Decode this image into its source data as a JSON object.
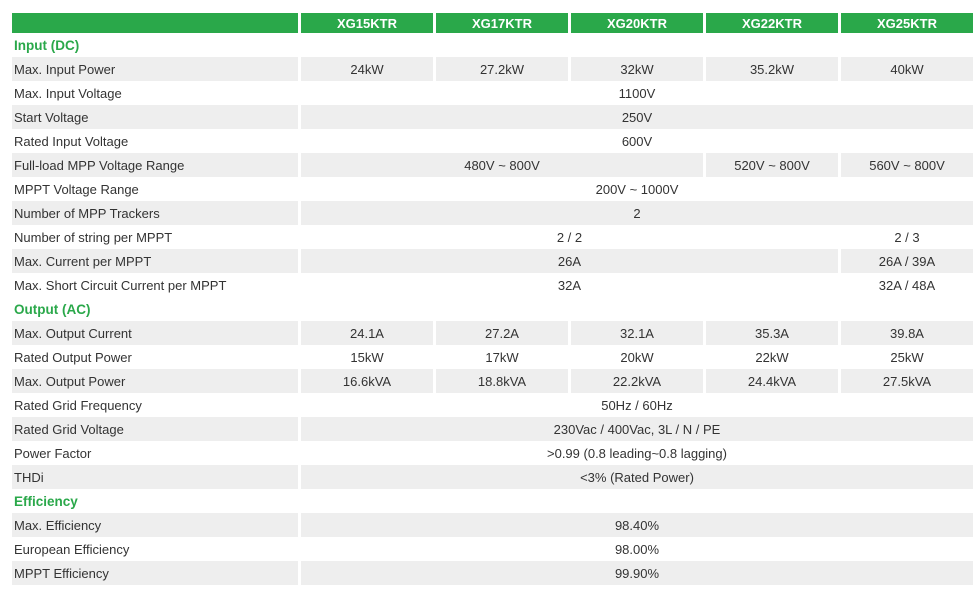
{
  "header": {
    "models": [
      "XG15KTR",
      "XG17KTR",
      "XG20KTR",
      "XG22KTR",
      "XG25KTR"
    ]
  },
  "sections": {
    "input": {
      "title": "Input (DC)",
      "max_input_power": {
        "label": "Max. Input Power",
        "values": [
          "24kW",
          "27.2kW",
          "32kW",
          "35.2kW",
          "40kW"
        ]
      },
      "max_input_voltage": {
        "label": "Max. Input Voltage",
        "value": "1100V"
      },
      "start_voltage": {
        "label": "Start Voltage",
        "value": "250V"
      },
      "rated_input_voltage": {
        "label": "Rated Input Voltage",
        "value": "600V"
      },
      "full_load_mpp": {
        "label": "Full-load MPP Voltage Range",
        "a": "480V ~ 800V",
        "b": "520V ~ 800V",
        "c": "560V ~ 800V"
      },
      "mppt_range": {
        "label": "MPPT Voltage Range",
        "value": "200V ~ 1000V"
      },
      "mpp_trackers": {
        "label": "Number of MPP Trackers",
        "value": "2"
      },
      "strings_per_mppt": {
        "label": "Number of string per MPPT",
        "a": "2 / 2",
        "b": "2 / 3"
      },
      "current_per_mppt": {
        "label": "Max. Current per MPPT",
        "a": "26A",
        "b": "26A / 39A"
      },
      "short_circuit": {
        "label": "Max. Short Circuit Current per MPPT",
        "a": "32A",
        "b": "32A / 48A"
      }
    },
    "output": {
      "title": "Output (AC)",
      "max_output_current": {
        "label": "Max. Output Current",
        "values": [
          "24.1A",
          "27.2A",
          "32.1A",
          "35.3A",
          "39.8A"
        ]
      },
      "rated_output_power": {
        "label": "Rated Output Power",
        "values": [
          "15kW",
          "17kW",
          "20kW",
          "22kW",
          "25kW"
        ]
      },
      "max_output_power": {
        "label": "Max. Output Power",
        "values": [
          "16.6kVA",
          "18.8kVA",
          "22.2kVA",
          "24.4kVA",
          "27.5kVA"
        ]
      },
      "grid_frequency": {
        "label": "Rated Grid Frequency",
        "value": "50Hz / 60Hz"
      },
      "grid_voltage": {
        "label": "Rated Grid Voltage",
        "value": "230Vac / 400Vac, 3L / N / PE"
      },
      "power_factor": {
        "label": "Power Factor",
        "value": ">0.99 (0.8 leading~0.8 lagging)"
      },
      "thdi": {
        "label": "THDi",
        "value": "<3% (Rated Power)"
      }
    },
    "efficiency": {
      "title": "Efficiency",
      "max_eff": {
        "label": "Max. Efficiency",
        "value": "98.40%"
      },
      "eu_eff": {
        "label": "European Efficiency",
        "value": "98.00%"
      },
      "mppt_eff": {
        "label": "MPPT Efficiency",
        "value": "99.90%"
      }
    }
  }
}
